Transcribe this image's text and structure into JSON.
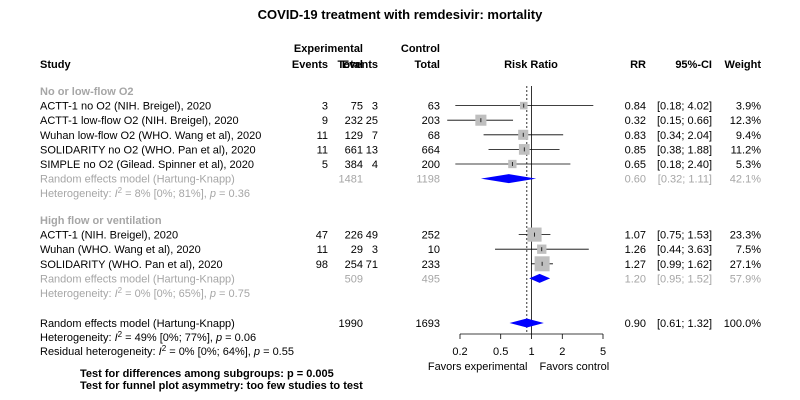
{
  "chart_data": {
    "type": "forest",
    "title": "COVID-19 treatment with remdesivir: mortality",
    "headers": {
      "study": "Study",
      "experimental": "Experimental",
      "control": "Control",
      "events": "Events",
      "total": "Total",
      "risk_ratio": "Risk Ratio",
      "rr": "RR",
      "ci": "95%-CI",
      "weight": "Weight"
    },
    "x_axis": {
      "scale": "log",
      "ticks": [
        0.2,
        0.5,
        1,
        2,
        5
      ],
      "tick_labels": [
        "0.2",
        "0.5",
        "1",
        "2",
        "5"
      ],
      "xlim": [
        0.2,
        5
      ],
      "label_left": "Favors experimental",
      "label_right": "Favors control",
      "null_value": 1,
      "overall_estimate": 0.9
    },
    "subgroups": [
      {
        "label": "No or low-flow O2",
        "studies": [
          {
            "name": "ACTT-1 no O2 (NIH. Breigel), 2020",
            "e_events": "3",
            "e_total": "75",
            "c_events": "3",
            "c_total": "63",
            "rr": 0.84,
            "lo": 0.18,
            "hi": 4.02,
            "weight": 3.9,
            "rr_text": "0.84",
            "ci_text": "[0.18; 4.02]",
            "weight_text": "3.9%"
          },
          {
            "name": "ACTT-1 low-flow O2 (NIH. Breigel), 2020",
            "e_events": "9",
            "e_total": "232",
            "c_events": "25",
            "c_total": "203",
            "rr": 0.32,
            "lo": 0.15,
            "hi": 0.66,
            "weight": 12.3,
            "rr_text": "0.32",
            "ci_text": "[0.15; 0.66]",
            "weight_text": "12.3%"
          },
          {
            "name": "Wuhan low-flow O2 (WHO. Wang et al), 2020",
            "e_events": "11",
            "e_total": "129",
            "c_events": "7",
            "c_total": "68",
            "rr": 0.83,
            "lo": 0.34,
            "hi": 2.04,
            "weight": 9.4,
            "rr_text": "0.83",
            "ci_text": "[0.34; 2.04]",
            "weight_text": "9.4%"
          },
          {
            "name": "SOLIDARITY no O2 (WHO. Pan et al), 2020",
            "e_events": "11",
            "e_total": "661",
            "c_events": "13",
            "c_total": "664",
            "rr": 0.85,
            "lo": 0.38,
            "hi": 1.88,
            "weight": 11.2,
            "rr_text": "0.85",
            "ci_text": "[0.38; 1.88]",
            "weight_text": "11.2%"
          },
          {
            "name": "SIMPLE no O2 (Gilead. Spinner et al), 2020",
            "e_events": "5",
            "e_total": "384",
            "c_events": "4",
            "c_total": "200",
            "rr": 0.65,
            "lo": 0.18,
            "hi": 2.4,
            "weight": 5.3,
            "rr_text": "0.65",
            "ci_text": "[0.18; 2.40]",
            "weight_text": "5.3%"
          }
        ],
        "pooled": {
          "name": "Random effects model (Hartung-Knapp)",
          "e_total": "1481",
          "c_total": "1198",
          "rr": 0.6,
          "lo": 0.32,
          "hi": 1.11,
          "rr_text": "0.60",
          "ci_text": "[0.32; 1.11]",
          "weight_text": "42.1%"
        },
        "heterogeneity": {
          "prefix": "Heterogeneity: ",
          "i": "I",
          "sup": "2",
          "body": " = 8% [0%; 81%], ",
          "p": "p",
          "p_text": " = 0.36"
        }
      },
      {
        "label": "High flow or ventilation",
        "studies": [
          {
            "name": "ACTT-1 (NIH. Breigel), 2020",
            "e_events": "47",
            "e_total": "226",
            "c_events": "49",
            "c_total": "252",
            "rr": 1.07,
            "lo": 0.75,
            "hi": 1.53,
            "weight": 23.3,
            "rr_text": "1.07",
            "ci_text": "[0.75; 1.53]",
            "weight_text": "23.3%"
          },
          {
            "name": "Wuhan (WHO. Wang et al), 2020",
            "e_events": "11",
            "e_total": "29",
            "c_events": "3",
            "c_total": "10",
            "rr": 1.26,
            "lo": 0.44,
            "hi": 3.63,
            "weight": 7.5,
            "rr_text": "1.26",
            "ci_text": "[0.44; 3.63]",
            "weight_text": "7.5%"
          },
          {
            "name": "SOLIDARITY (WHO. Pan et al), 2020",
            "e_events": "98",
            "e_total": "254",
            "c_events": "71",
            "c_total": "233",
            "rr": 1.27,
            "lo": 0.99,
            "hi": 1.62,
            "weight": 27.1,
            "rr_text": "1.27",
            "ci_text": "[0.99; 1.62]",
            "weight_text": "27.1%"
          }
        ],
        "pooled": {
          "name": "Random effects model (Hartung-Knapp)",
          "e_total": "509",
          "c_total": "495",
          "rr": 1.2,
          "lo": 0.95,
          "hi": 1.52,
          "rr_text": "1.20",
          "ci_text": "[0.95; 1.52]",
          "weight_text": "57.9%"
        },
        "heterogeneity": {
          "prefix": "Heterogeneity: ",
          "i": "I",
          "sup": "2",
          "body": " = 0% [0%; 65%], ",
          "p": "p",
          "p_text": " = 0.75"
        }
      }
    ],
    "overall": {
      "name": "Random effects model (Hartung-Knapp)",
      "e_total": "1990",
      "c_total": "1693",
      "rr": 0.9,
      "lo": 0.61,
      "hi": 1.32,
      "rr_text": "0.90",
      "ci_text": "[0.61; 1.32]",
      "weight_text": "100.0%"
    },
    "overall_heterogeneity": {
      "prefix": "Heterogeneity: ",
      "i": "I",
      "sup": "2",
      "body": " = 49% [0%; 77%], ",
      "p": "p",
      "p_text": " = 0.06"
    },
    "residual_heterogeneity": {
      "prefix": "Residual heterogeneity: ",
      "i": "I",
      "sup": "2",
      "body": " = 0% [0%; 64%], ",
      "p": "p",
      "p_text": " = 0.55"
    },
    "tests": [
      "Test for differences among subgroups: p = 0.005",
      "Test for funnel plot asymmetry: too few studies to test"
    ],
    "colors": {
      "text": "#000000",
      "pooled_text": "#a6a6a6",
      "diamond": "#0000ff",
      "square": "#bfbfbf",
      "line": "#000000"
    }
  }
}
